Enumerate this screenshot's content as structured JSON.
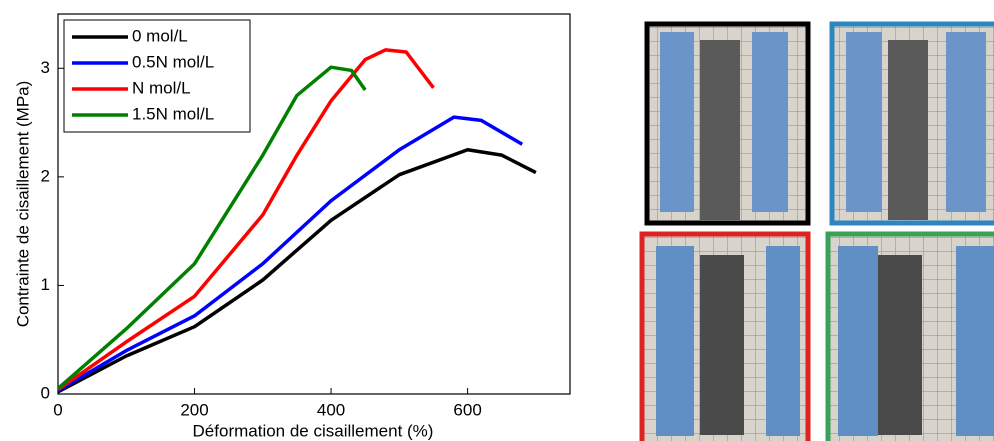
{
  "chart_data": {
    "type": "line",
    "xlabel": "Déformation de cisaillement (%)",
    "ylabel": "Contrainte de cisaillement (MPa)",
    "xlim": [
      0,
      750
    ],
    "ylim": [
      0,
      3.5
    ],
    "xticks": [
      0,
      200,
      400,
      600
    ],
    "yticks": [
      0,
      1,
      2,
      3
    ],
    "legend": "upper left",
    "series": [
      {
        "name": "0 mol/L",
        "color": "#000000",
        "x": [
          0,
          100,
          200,
          300,
          400,
          500,
          600,
          650,
          700
        ],
        "values": [
          0.02,
          0.35,
          0.62,
          1.05,
          1.6,
          2.02,
          2.25,
          2.2,
          2.04
        ]
      },
      {
        "name": "0.5N mol/L",
        "color": "#0000ff",
        "x": [
          0,
          100,
          200,
          300,
          400,
          500,
          580,
          620,
          680
        ],
        "values": [
          0.03,
          0.4,
          0.72,
          1.2,
          1.78,
          2.25,
          2.55,
          2.52,
          2.3
        ]
      },
      {
        "name": "N mol/L",
        "color": "#ff0000",
        "x": [
          0,
          100,
          200,
          300,
          350,
          400,
          450,
          480,
          510,
          550
        ],
        "values": [
          0.04,
          0.48,
          0.9,
          1.65,
          2.2,
          2.7,
          3.08,
          3.17,
          3.15,
          2.82
        ]
      },
      {
        "name": "1.5N mol/L",
        "color": "#008000",
        "x": [
          0,
          100,
          200,
          300,
          350,
          400,
          430,
          450
        ],
        "values": [
          0.05,
          0.6,
          1.2,
          2.2,
          2.75,
          3.01,
          2.98,
          2.8
        ]
      }
    ]
  }
}
